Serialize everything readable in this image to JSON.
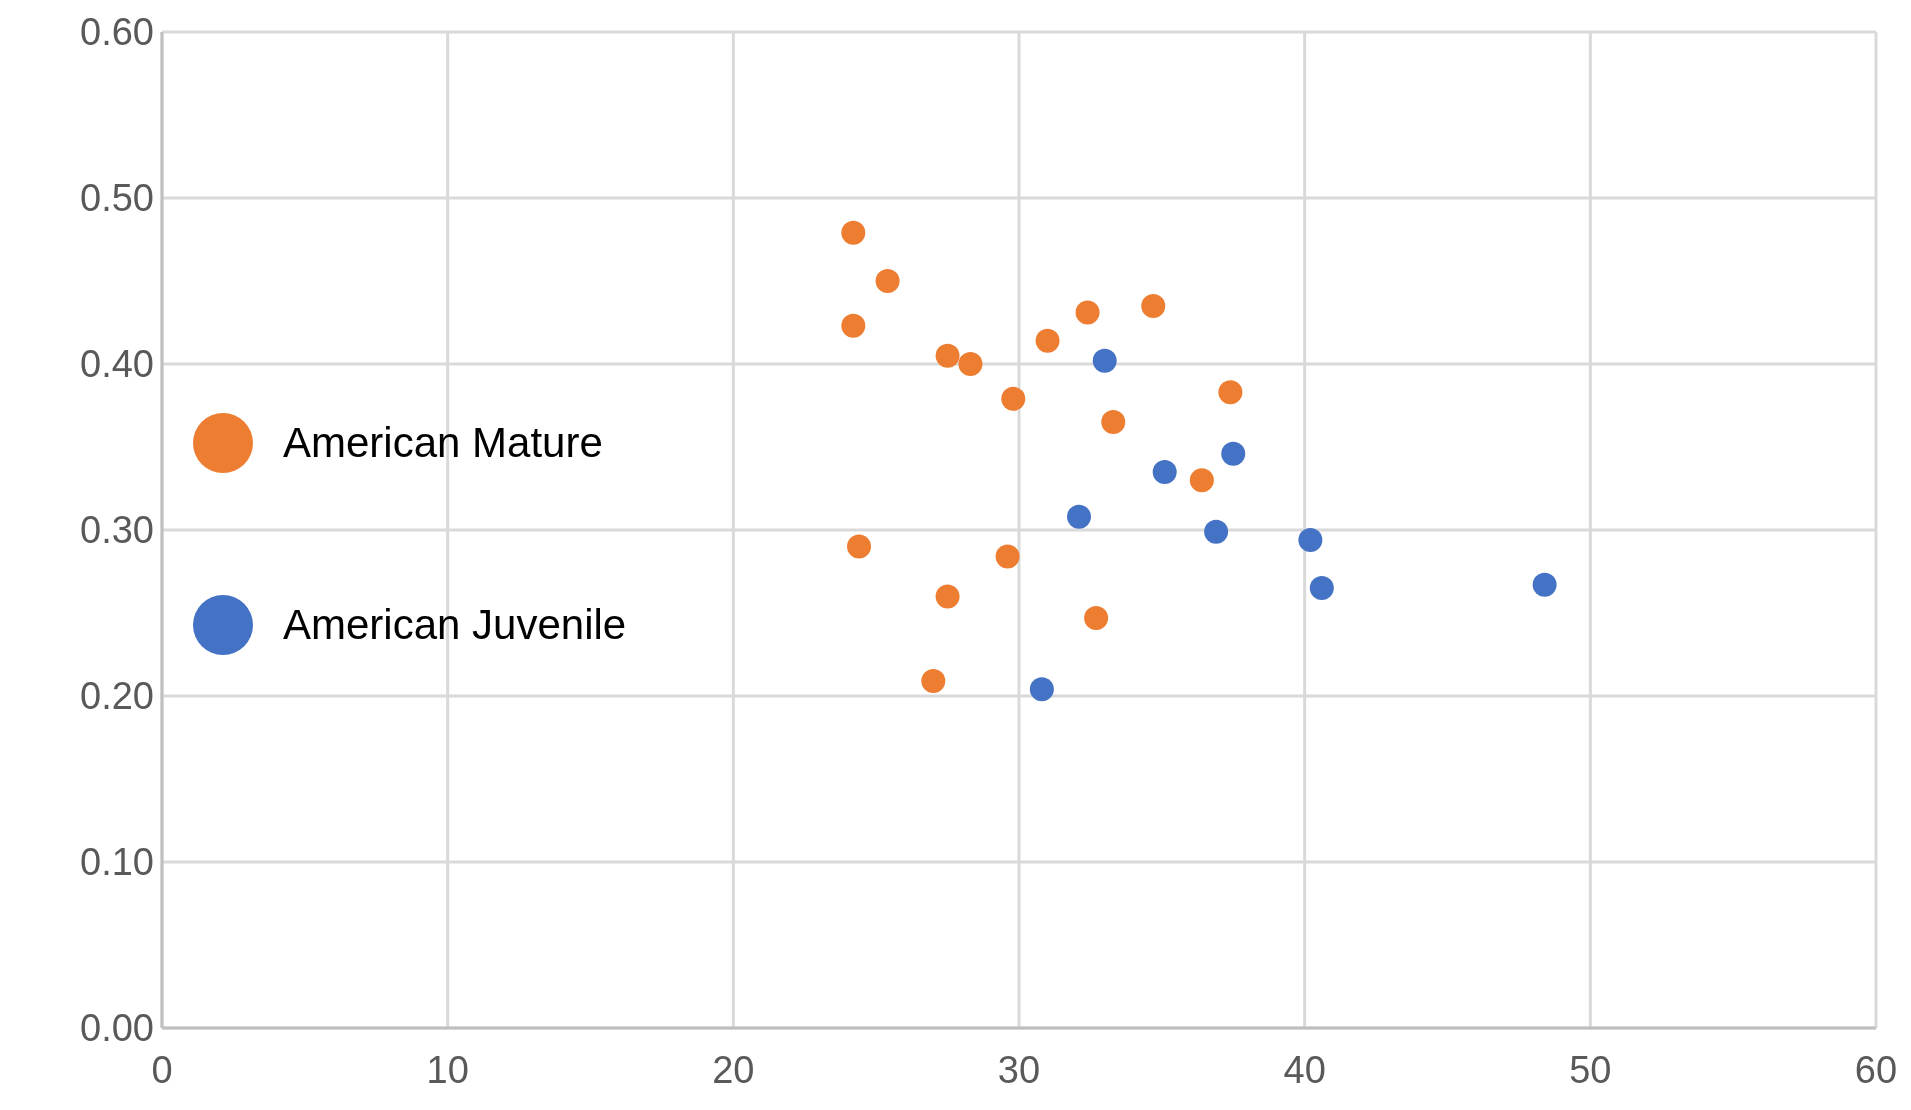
{
  "chart_data": {
    "type": "scatter",
    "xlim": [
      0,
      60
    ],
    "xticks": [
      0,
      10,
      20,
      30,
      40,
      50,
      60
    ],
    "ylim": [
      0,
      0.6
    ],
    "yticks": [
      {
        "value": 0,
        "label": "0.00"
      },
      {
        "value": 0.1,
        "label": "0.10"
      },
      {
        "value": 0.2,
        "label": "0.20"
      },
      {
        "value": 0.3,
        "label": "0.30"
      },
      {
        "value": 0.4,
        "label": "0.40"
      },
      {
        "value": 0.5,
        "label": "0.50"
      },
      {
        "value": 0.6,
        "label": "0.60"
      }
    ],
    "grid": true,
    "legend": "left",
    "marker": "circle",
    "series": [
      {
        "name": "American Mature",
        "color": "#ed7d31",
        "x": [
          24.2,
          25.4,
          24.2,
          27.5,
          28.3,
          31.0,
          32.4,
          34.7,
          29.8,
          33.3,
          37.4,
          36.4,
          24.4,
          29.6,
          27.5,
          32.7,
          27.0
        ],
        "values": [
          0.479,
          0.45,
          0.423,
          0.405,
          0.4,
          0.414,
          0.431,
          0.435,
          0.379,
          0.365,
          0.383,
          0.33,
          0.29,
          0.284,
          0.26,
          0.247,
          0.209
        ]
      },
      {
        "name": "American Juvenile",
        "color": "#4472c4",
        "x": [
          33.0,
          35.1,
          37.5,
          32.1,
          36.9,
          40.2,
          40.6,
          48.4,
          30.8
        ],
        "values": [
          0.402,
          0.335,
          0.346,
          0.308,
          0.299,
          0.294,
          0.265,
          0.267,
          0.204
        ]
      }
    ]
  }
}
